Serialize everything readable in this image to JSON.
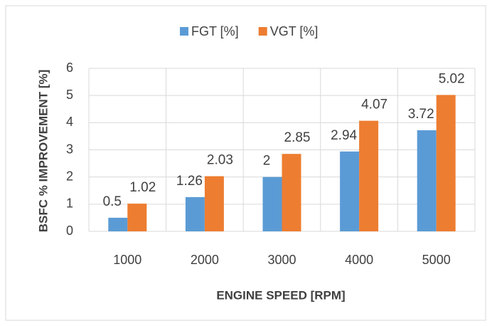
{
  "chart_data": {
    "type": "bar",
    "categories": [
      "1000",
      "2000",
      "3000",
      "4000",
      "5000"
    ],
    "series": [
      {
        "name": "FGT [%]",
        "color": "#5b9bd5",
        "values": [
          0.5,
          1.26,
          2,
          2.94,
          3.72
        ]
      },
      {
        "name": "VGT [%]",
        "color": "#ed7d31",
        "values": [
          1.02,
          2.03,
          2.85,
          4.07,
          5.02
        ]
      }
    ],
    "ylim": [
      0,
      6
    ],
    "yticks": [
      0,
      1,
      2,
      3,
      4,
      5,
      6
    ],
    "grid": true,
    "y_label": "BSFC % IMPROVEMENT [%]",
    "x_label": "ENGINE SPEED [RPM]",
    "legend": "top"
  }
}
